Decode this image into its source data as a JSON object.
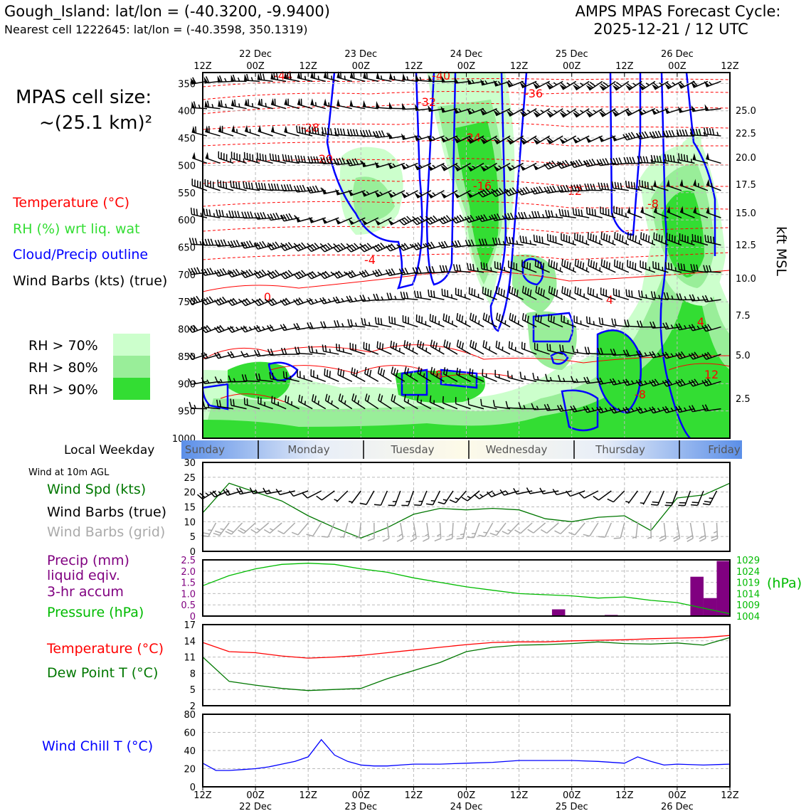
{
  "header": {
    "station_title": "Gough_Island: lat/lon = (-40.3200, -9.9400)",
    "nearest_cell": "Nearest cell 1222645: lat/lon = (-40.3598, 350.1319)",
    "forecast_title": "AMPS MPAS Forecast Cycle:",
    "forecast_cycle": "2025-12-21 / 12 UTC"
  },
  "cell_size": {
    "line1": "MPAS cell size:",
    "line2": "~(25.1 km)²"
  },
  "legend_upper": {
    "temperature": "Temperature (°C)",
    "rh": "RH (%) wrt liq. wat",
    "cloud": "Cloud/Precip outline",
    "wind": "Wind Barbs (kts) (true)",
    "rh70": "RH > 70%",
    "rh80": "RH > 80%",
    "rh90": "RH > 90%"
  },
  "colors": {
    "temperature": "#ff0000",
    "rh_label": "#33dd33",
    "cloud": "#0000ff",
    "rh70": "#ccffcc",
    "rh80": "#99ee99",
    "rh90": "#33dd33",
    "wind_speed": "#007700",
    "wind_grid": "#aaaaaa",
    "precip": "#800080",
    "pressure": "#00bb00",
    "dewpoint": "#007700",
    "windchill": "#0000ff"
  },
  "time_axis": {
    "top_labels": [
      "12Z",
      "00Z",
      "12Z",
      "00Z",
      "12Z",
      "00Z",
      "12Z",
      "00Z",
      "12Z",
      "00Z",
      "12Z"
    ],
    "dates": [
      "22 Dec",
      "23 Dec",
      "24 Dec",
      "25 Dec",
      "26 Dec"
    ]
  },
  "weekday": {
    "label": "Local Weekday",
    "days": [
      "Sunday",
      "Monday",
      "Tuesday",
      "Wednesday",
      "Thursday",
      "Friday"
    ]
  },
  "panel_labels": {
    "wind_note": "Wind at 10m AGL",
    "wind_spd": "Wind Spd (kts)",
    "wind_true": "Wind Barbs (true)",
    "wind_grid": "Wind Barbs (grid)",
    "precip1": "Precip (mm)",
    "precip2": "liquid eqiv.",
    "precip3": "3-hr accum",
    "pressure": "Pressure (hPa)",
    "pressure_unit": "(hPa)",
    "temperature": "Temperature (°C)",
    "dewpoint": "Dew Point T (°C)",
    "windchill": "Wind Chill T (°C)",
    "kft": "kft MSL"
  },
  "chart_data": [
    {
      "type": "heatmap",
      "name": "cross-section",
      "y_pressure_ticks": [
        "350",
        "400",
        "450",
        "500",
        "550",
        "600",
        "650",
        "700",
        "750",
        "800",
        "850",
        "900",
        "950",
        "1000"
      ],
      "y_kft_ticks": [
        "25.0",
        "22.5",
        "20.0",
        "17.5",
        "15.0",
        "12.5",
        "10.0",
        "7.5",
        "5.0",
        "2.5"
      ],
      "temperature_contour_labels": [
        "-44",
        "-40",
        "-36",
        "-32",
        "-28",
        "-24",
        "-20",
        "-16",
        "-12",
        "-8",
        "-4",
        "0",
        "4",
        "8",
        "12",
        "-8",
        "4"
      ],
      "ylim": [
        1000,
        330
      ]
    },
    {
      "type": "line",
      "name": "wind-speed",
      "yticks": [
        "0",
        "5",
        "10",
        "15",
        "20",
        "25",
        "30"
      ],
      "ylim": [
        0,
        30
      ],
      "x_hours": [
        0,
        6,
        12,
        18,
        24,
        30,
        36,
        42,
        48,
        54,
        60,
        66,
        72,
        78,
        84,
        90,
        96,
        102,
        108,
        114,
        120
      ],
      "values": [
        13,
        23,
        20,
        17,
        12,
        8,
        4.5,
        8,
        12.5,
        14.5,
        14,
        14.5,
        14,
        11,
        10,
        11.5,
        12,
        7,
        18,
        19,
        23
      ]
    },
    {
      "type": "bar",
      "name": "precip-pressure",
      "precip_yticks": [
        "0",
        "0.5",
        "1.0",
        "1.5",
        "2.0",
        "2.5"
      ],
      "pressure_yticks": [
        "1004",
        "1009",
        "1014",
        "1019",
        "1024",
        "1029"
      ],
      "precip_bars": [
        {
          "x_hour": 81,
          "value": 0.3
        },
        {
          "x_hour": 93,
          "value": 0.05
        },
        {
          "x_hour": 112.5,
          "value": 1.75
        },
        {
          "x_hour": 115.5,
          "value": 0.8
        },
        {
          "x_hour": 118.5,
          "value": 2.45
        }
      ],
      "pressure": {
        "x_hours": [
          0,
          6,
          12,
          18,
          24,
          30,
          36,
          42,
          48,
          54,
          60,
          66,
          72,
          78,
          84,
          90,
          96,
          102,
          108,
          114,
          120
        ],
        "values": [
          1017.5,
          1022,
          1025,
          1027,
          1027.5,
          1027,
          1025,
          1023.5,
          1021,
          1019,
          1017,
          1015.5,
          1014,
          1013.5,
          1013,
          1012,
          1012.5,
          1011,
          1010,
          1007.5,
          1005
        ]
      }
    },
    {
      "type": "line",
      "name": "temp-dewpoint",
      "yticks": [
        "2",
        "5",
        "8",
        "11",
        "14",
        "17"
      ],
      "ylim": [
        2,
        17
      ],
      "x_hours": [
        0,
        6,
        12,
        18,
        24,
        30,
        36,
        42,
        48,
        54,
        60,
        66,
        72,
        78,
        84,
        90,
        96,
        102,
        108,
        114,
        120
      ],
      "series": [
        {
          "name": "Temperature (°C)",
          "values": [
            13.7,
            12,
            11.8,
            11.2,
            10.8,
            11,
            11.3,
            11.8,
            12.3,
            12.8,
            13.3,
            13.7,
            13.8,
            13.8,
            14,
            14.1,
            14.2,
            14.4,
            14.5,
            14.6,
            15
          ]
        },
        {
          "name": "Dew Point T (°C)",
          "values": [
            11,
            6.5,
            5.8,
            5.2,
            4.8,
            5,
            5.2,
            7,
            8.5,
            10,
            12,
            12.8,
            13.2,
            13.3,
            13.5,
            13.8,
            13.5,
            13.4,
            13.6,
            13.2,
            14.6
          ]
        }
      ]
    },
    {
      "type": "line",
      "name": "wind-chill",
      "yticks": [
        "0",
        "20",
        "40",
        "60",
        "80"
      ],
      "ylim": [
        0,
        80
      ],
      "x_hours": [
        0,
        3,
        6,
        9,
        12,
        15,
        18,
        21,
        24,
        27,
        30,
        33,
        36,
        39,
        42,
        45,
        48,
        54,
        60,
        66,
        72,
        78,
        84,
        90,
        96,
        99,
        102,
        105,
        108,
        114,
        120
      ],
      "values": [
        26,
        18,
        18,
        19,
        20,
        22,
        25,
        28,
        33,
        52,
        35,
        28,
        24,
        23,
        23,
        24,
        25,
        25,
        26,
        27,
        29,
        29,
        29,
        28,
        26,
        33,
        28,
        24,
        25,
        24,
        25
      ]
    }
  ]
}
